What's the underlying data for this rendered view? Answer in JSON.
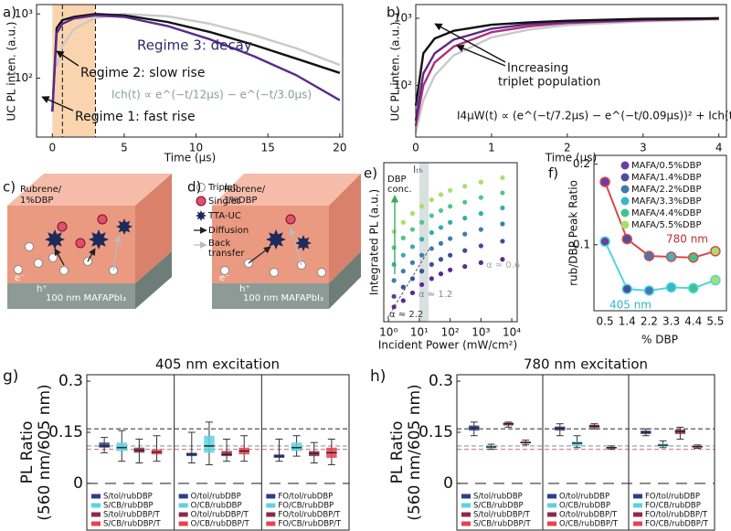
{
  "chart_data": [
    {
      "type": "line",
      "panel": "a)",
      "ylabel": "UC PL inten. (a.u.)",
      "xlabel": "Time (μs)",
      "xlim": [
        -1.1,
        20.2
      ],
      "ylim": [
        12,
        1400
      ],
      "log_y": true,
      "xticks": [
        0,
        5,
        10,
        15,
        20
      ],
      "yticks": [
        {
          "value": 100,
          "label": "10²"
        },
        {
          "value": 1000,
          "label": "10³"
        }
      ],
      "shade": [
        0,
        3
      ],
      "shade_color": "#f7c99a",
      "vlines": [
        0.7,
        3
      ],
      "x": [
        0,
        0.3,
        0.7,
        1.5,
        3,
        5,
        8,
        11,
        14,
        17,
        20
      ],
      "series": [
        {
          "color": "#c9c9c9",
          "values": [
            null,
            150,
            320,
            580,
            870,
            1000,
            920,
            700,
            470,
            290,
            160
          ]
        },
        {
          "color": "#111111",
          "values": [
            30,
            600,
            800,
            900,
            1000,
            950,
            750,
            520,
            330,
            200,
            120
          ]
        },
        {
          "color": "#5b2a8c",
          "values": [
            30,
            500,
            700,
            850,
            950,
            900,
            650,
            400,
            220,
            110,
            45
          ]
        }
      ],
      "annotations": [
        "Regime 3: decay",
        "Regime 2: slow rise",
        "Regime 1: fast rise",
        "Ich(t) ∝ e^(−t/12μs) − e^(−t/3.0μs)"
      ]
    },
    {
      "type": "line",
      "panel": "b)",
      "ylabel": "UC PL inten. (a.u.)",
      "xlabel": "Time (μs)",
      "xlim": [
        0,
        4.1
      ],
      "ylim": [
        17,
        1600
      ],
      "log_y": true,
      "xticks": [
        0,
        1,
        2,
        3,
        4
      ],
      "yticks": [
        {
          "value": 100,
          "label": "10²"
        },
        {
          "value": 1000,
          "label": "10³"
        }
      ],
      "x": [
        0,
        0.1,
        0.25,
        0.5,
        1,
        1.5,
        2,
        3,
        4
      ],
      "series": [
        {
          "color": "#c9c9c9",
          "values": [
            20,
            60,
            140,
            280,
            520,
            680,
            790,
            900,
            960
          ]
        },
        {
          "color": "#b0307a",
          "values": [
            25,
            100,
            220,
            380,
            620,
            760,
            850,
            930,
            980
          ]
        },
        {
          "color": "#5b2a8c",
          "values": [
            30,
            150,
            300,
            480,
            700,
            820,
            880,
            950,
            1000
          ]
        },
        {
          "color": "#111111",
          "values": [
            50,
            300,
            500,
            650,
            800,
            870,
            920,
            980,
            1000
          ]
        }
      ],
      "annotations": [
        "Increasing",
        "triplet population",
        "I4μW(t) ∝ (e^(−t/7.2μs) − e^(−t/0.09μs))² + Ich(t)"
      ]
    },
    {
      "type": "scatter",
      "panel": "e)",
      "ylabel": "Integrated PL (a.u.)",
      "xlabel": "Incident Power (mW/cm²)",
      "xlim": [
        0.7,
        15000
      ],
      "ylim": [
        1,
        1000
      ],
      "log_x": true,
      "log_y": true,
      "xticks": [
        {
          "value": 1,
          "label": "10⁰"
        },
        {
          "value": 10,
          "label": "10¹"
        },
        {
          "value": 100,
          "label": "10²"
        },
        {
          "value": 1000,
          "label": "10³"
        },
        {
          "value": 10000,
          "label": "10⁴"
        }
      ],
      "shade": [
        10,
        20
      ],
      "shade_color": "#cfd8d8",
      "x": [
        1.5,
        3,
        6,
        12,
        25,
        50,
        100,
        300,
        1000,
        5000
      ],
      "series": [
        {
          "color": "#5b2a8c",
          "values": [
            1.9,
            2.5,
            3.5,
            5,
            6.5,
            8,
            9.5,
            11,
            13,
            15
          ]
        },
        {
          "color": "#3b4f9a",
          "values": [
            3,
            4.5,
            6.5,
            9,
            12,
            15,
            18,
            22,
            27,
            33
          ]
        },
        {
          "color": "#3a7fb0",
          "values": [
            6,
            9,
            13,
            18,
            24,
            30,
            37,
            45,
            55,
            70
          ]
        },
        {
          "color": "#2fb0a8",
          "values": [
            12,
            18,
            26,
            36,
            48,
            60,
            75,
            90,
            110,
            140
          ]
        },
        {
          "color": "#4fc88a",
          "values": [
            25,
            38,
            55,
            75,
            100,
            125,
            150,
            180,
            220,
            270
          ]
        },
        {
          "color": "#a8e06a",
          "values": [
            50,
            75,
            110,
            150,
            200,
            250,
            300,
            360,
            430,
            520
          ]
        }
      ],
      "annotations": [
        "DBP",
        "conc.",
        "Iₜₕ",
        "α ≈ 2.2",
        "α ≈ 1.2",
        "α ≈ 0.6"
      ]
    },
    {
      "type": "category_line",
      "panel": "f)",
      "ylabel": "rub/DBP Peak Ratio",
      "xlabel": "% DBP",
      "ylim": [
        0.018,
        0.211
      ],
      "yticks": [
        0.1,
        0.2
      ],
      "categories": [
        "0.5",
        "1.4",
        "2.2",
        "3.3",
        "4.4",
        "5.5"
      ],
      "series": [
        {
          "name": "780 nm",
          "color": "#d84a4a",
          "values": [
            0.178,
            0.107,
            0.086,
            0.085,
            0.084,
            0.092
          ]
        },
        {
          "name": "405 nm",
          "color": "#4fd6e0",
          "values": [
            0.104,
            0.045,
            0.043,
            0.047,
            0.046,
            0.056
          ]
        }
      ],
      "point_legend": [
        {
          "name": "MAFA/0.5%DBP",
          "color": "#6b3fa0"
        },
        {
          "name": "MAFA/1.4%DBP",
          "color": "#4a4f9c"
        },
        {
          "name": "MAFA/2.2%DBP",
          "color": "#3f78b4"
        },
        {
          "name": "MAFA/3.3%DBP",
          "color": "#35b8c4"
        },
        {
          "name": "MAFA/4.4%DBP",
          "color": "#3fc48c"
        },
        {
          "name": "MAFA/5.5%DBP",
          "color": "#a6e06a"
        }
      ]
    },
    {
      "type": "box",
      "panel": "g)",
      "title": "405 nm excitation",
      "ylabel": [
        "PL Ratio",
        "(560 nm/605 nm)"
      ],
      "ylim": [
        -0.137,
        0.319
      ],
      "yticks": [
        0,
        0.15,
        0.3
      ],
      "hlines": [
        {
          "value": 0.16,
          "color": "#555555"
        },
        {
          "value": 0.11,
          "color": "#8a9bb0"
        },
        {
          "value": 0.1,
          "color": "#c98a8a"
        },
        {
          "value": 0,
          "color": "#333333"
        }
      ],
      "groups": [
        {
          "boxes": [
            {
              "name": "S/tol/rubDBP",
              "color": "#2a3d8f",
              "stats": [
                0.09,
                0.105,
                0.11,
                0.12,
                0.135
              ]
            },
            {
              "name": "S/CB/rubDBP",
              "color": "#5ed3df",
              "stats": [
                0.065,
                0.095,
                0.105,
                0.12,
                0.155
              ]
            },
            {
              "name": "S/tol/rubDBP/T",
              "color": "#8c2a4a",
              "stats": [
                0.06,
                0.09,
                0.097,
                0.105,
                0.13
              ]
            },
            {
              "name": "S/CB/rubDBP/T",
              "color": "#e8424f",
              "stats": [
                0.065,
                0.085,
                0.092,
                0.1,
                0.14
              ]
            }
          ]
        },
        {
          "boxes": [
            {
              "name": "O/tol/rubDBP",
              "color": "#2a3d8f",
              "stats": [
                0.06,
                0.08,
                0.085,
                0.09,
                0.15
              ]
            },
            {
              "name": "O/CB/rubDBP",
              "color": "#5ed3df",
              "stats": [
                0.055,
                0.09,
                0.11,
                0.14,
                0.18
              ]
            },
            {
              "name": "O/tol/rubDBP/T",
              "color": "#8c2a4a",
              "stats": [
                0.065,
                0.08,
                0.085,
                0.095,
                0.13
              ]
            },
            {
              "name": "O/CB/rubDBP/T",
              "color": "#e8424f",
              "stats": [
                0.065,
                0.085,
                0.095,
                0.105,
                0.14
              ]
            }
          ]
        },
        {
          "boxes": [
            {
              "name": "FO/tol/rubDBP",
              "color": "#2a3d8f",
              "stats": [
                0.065,
                0.075,
                0.08,
                0.085,
                0.13
              ]
            },
            {
              "name": "FO/CB/rubDBP",
              "color": "#5ed3df",
              "stats": [
                0.08,
                0.095,
                0.105,
                0.12,
                0.14
              ]
            },
            {
              "name": "FO/tol/rubDBP/T",
              "color": "#8c2a4a",
              "stats": [
                0.06,
                0.08,
                0.088,
                0.095,
                0.12
              ]
            },
            {
              "name": "FO/CB/rubDBP/T",
              "color": "#e8424f",
              "stats": [
                0.055,
                0.075,
                0.09,
                0.105,
                0.13
              ]
            }
          ]
        }
      ]
    },
    {
      "type": "box",
      "panel": "h)",
      "title": "780 nm excitation",
      "ylabel": [
        "PL Ratio",
        "(560 nm/605 nm)"
      ],
      "ylim": [
        -0.137,
        0.319
      ],
      "yticks": [
        0,
        0.15,
        0.3
      ],
      "hlines": [
        {
          "value": 0.16,
          "color": "#555555"
        },
        {
          "value": 0.11,
          "color": "#8a9bb0"
        },
        {
          "value": 0.1,
          "color": "#c98a8a"
        },
        {
          "value": 0,
          "color": "#333333"
        }
      ],
      "groups": [
        {
          "boxes": [
            {
              "name": "S/tol/rubDBP",
              "color": "#2a3d8f",
              "stats": [
                0.14,
                0.155,
                0.163,
                0.17,
                0.18
              ]
            },
            {
              "name": "S/CB/rubDBP",
              "color": "#5ed3df",
              "stats": [
                0.1,
                0.103,
                0.107,
                0.11,
                0.115
              ]
            },
            {
              "name": "S/tol/rubDBP/T",
              "color": "#8c2a4a",
              "stats": [
                0.165,
                0.17,
                0.175,
                0.178,
                0.18
              ]
            },
            {
              "name": "S/CB/rubDBP/T",
              "color": "#e8424f",
              "stats": [
                0.113,
                0.117,
                0.12,
                0.123,
                0.127
              ]
            }
          ]
        },
        {
          "boxes": [
            {
              "name": "O/tol/rubDBP",
              "color": "#2a3d8f",
              "stats": [
                0.14,
                0.155,
                0.162,
                0.167,
                0.175
              ]
            },
            {
              "name": "O/CB/rubDBP",
              "color": "#5ed3df",
              "stats": [
                0.105,
                0.11,
                0.118,
                0.123,
                0.14
              ]
            },
            {
              "name": "O/tol/rubDBP/T",
              "color": "#8c2a4a",
              "stats": [
                0.16,
                0.163,
                0.168,
                0.172,
                0.175
              ]
            },
            {
              "name": "O/CB/rubDBP/T",
              "color": "#e8424f",
              "stats": [
                0.1,
                0.102,
                0.105,
                0.107,
                0.11
              ]
            }
          ]
        },
        {
          "boxes": [
            {
              "name": "FO/tol/rubDBP",
              "color": "#2a3d8f",
              "stats": [
                0.14,
                0.145,
                0.15,
                0.155,
                0.16
              ]
            },
            {
              "name": "FO/CB/rubDBP",
              "color": "#5ed3df",
              "stats": [
                0.105,
                0.108,
                0.112,
                0.117,
                0.125
              ]
            },
            {
              "name": "FO/tol/rubDBP/T",
              "color": "#8c2a4a",
              "stats": [
                0.13,
                0.145,
                0.152,
                0.158,
                0.165
              ]
            },
            {
              "name": "FO/CB/rubDBP/T",
              "color": "#e8424f",
              "stats": [
                0.103,
                0.105,
                0.108,
                0.11,
                0.113
              ]
            }
          ]
        }
      ]
    }
  ],
  "diagrams": [
    {
      "panel": "c)",
      "film": [
        "Rubrene/",
        "1%DBP"
      ],
      "substrate": "100 nm MAFAPbI₃",
      "carriers": [
        "e⁻",
        "h⁺"
      ]
    },
    {
      "panel": "d)",
      "film": [
        "Rubrene/",
        "1%DBP"
      ],
      "substrate": "100 nm MAFAPbI₃",
      "carriers": [
        "e⁻",
        "h⁺"
      ]
    }
  ],
  "key": [
    "Triplet",
    "Singlet",
    "TTA-UC",
    "Diffusion",
    "Back",
    "transfer"
  ]
}
